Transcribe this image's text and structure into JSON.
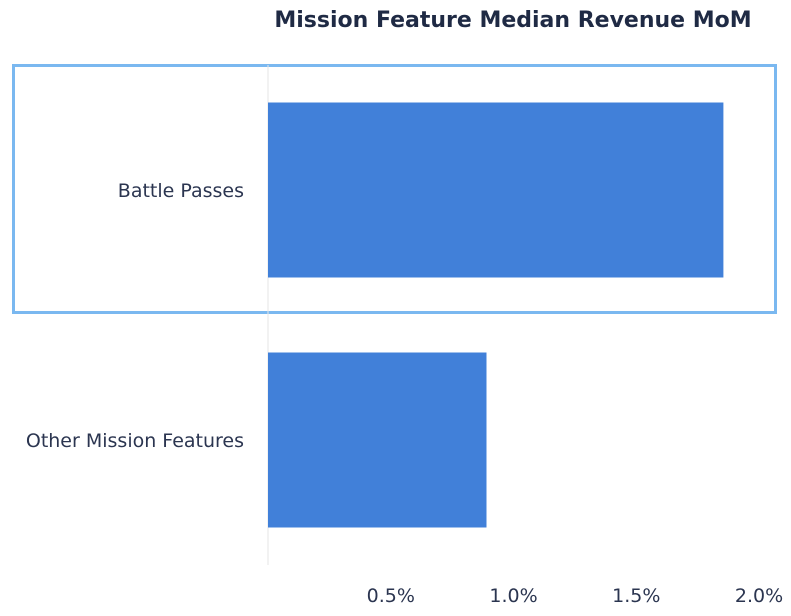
{
  "chart_data": {
    "type": "bar",
    "orientation": "horizontal",
    "title": "Mission Feature Median Revenue MoM",
    "xlabel": "",
    "ylabel": "",
    "categories": [
      "Battle Passes",
      "Other Mission Features"
    ],
    "values": [
      1.855,
      0.89
    ],
    "unit": "%",
    "xlim": [
      0,
      2.0
    ],
    "ticks": [
      0.5,
      1.0,
      1.5,
      2.0
    ],
    "tick_labels": [
      "0.5%",
      "1.0%",
      "1.5%",
      "2.0%"
    ],
    "highlighted_category": "Battle Passes",
    "grid": false,
    "legend": "none"
  },
  "colors": {
    "bar": "#4180d9",
    "highlight_border": "#7ab8f0",
    "axis_line": "#e6e6e6",
    "text": "#2b3550",
    "title": "#1f2a44"
  }
}
